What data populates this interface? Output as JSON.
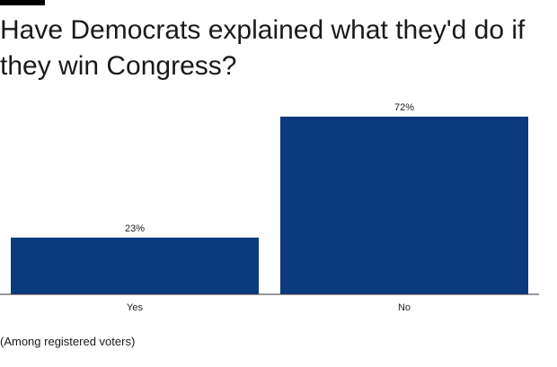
{
  "chart_data": {
    "type": "bar",
    "title": "Have Democrats explained what they'd do if they win Congress?",
    "categories": [
      "Yes",
      "No"
    ],
    "values": [
      23,
      72
    ],
    "value_labels": [
      "23%",
      "72%"
    ],
    "ylim": [
      0,
      72
    ],
    "grid": false,
    "legend": "none",
    "bar_color": "#0b3a7e",
    "footnote": "(Among registered voters)"
  }
}
